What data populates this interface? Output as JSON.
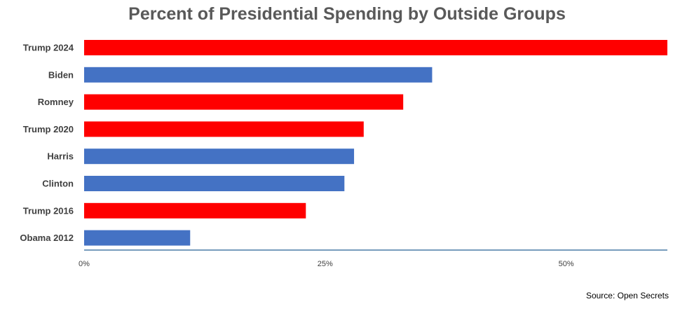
{
  "chart_data": {
    "type": "bar",
    "orientation": "horizontal",
    "title": "Percent of Presidential Spending by Outside Groups",
    "categories": [
      "Trump 2024",
      "Biden",
      "Romney",
      "Trump 2020",
      "Harris",
      "Clinton",
      "Trump 2016",
      "Obama 2012"
    ],
    "values": [
      60.5,
      36.1,
      33.1,
      29.0,
      28.0,
      27.0,
      23.0,
      11.0
    ],
    "bar_colors": [
      "#ff0000",
      "#4472c4",
      "#ff0000",
      "#ff0000",
      "#4472c4",
      "#4472c4",
      "#ff0000",
      "#4472c4"
    ],
    "xlim": [
      0,
      60.5
    ],
    "xticks": [
      0,
      25,
      50
    ],
    "xtick_labels": [
      "0%",
      "25%",
      "50%"
    ],
    "grid": false,
    "xlabel": "",
    "ylabel": ""
  },
  "source_text": "Source: Open Secrets",
  "colors": {
    "republican": "#ff0000",
    "democrat": "#4472c4",
    "axis": "#4a7ba7",
    "title": "#595959"
  }
}
